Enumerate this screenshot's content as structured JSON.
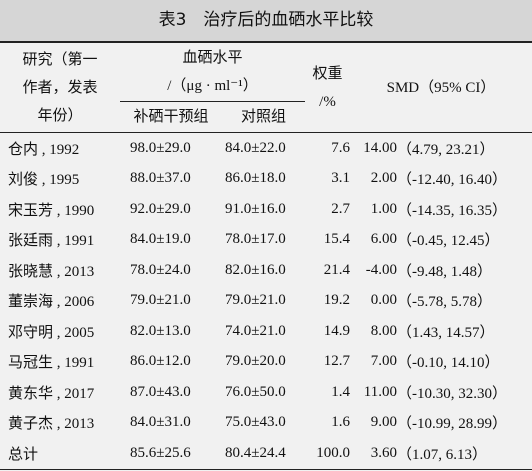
{
  "title": "表3　治疗后的血硒水平比较",
  "header": {
    "study": [
      "研究（第一",
      "作者，发表",
      "年份）"
    ],
    "level": [
      "血硒水平",
      "/（μg · ml⁻¹）"
    ],
    "intervention": "补硒干预组",
    "control": "对照组",
    "weight": [
      "权重",
      "/%"
    ],
    "smd": "SMD（95% CI）"
  },
  "table": {
    "rows": [
      [
        "仓内 , 1992",
        "98.0±29.0",
        "84.0±22.0",
        "7.6",
        "14.00",
        "（4.79, 23.21）"
      ],
      [
        "刘俊 , 1995",
        "88.0±37.0",
        "86.0±18.0",
        "3.1",
        "2.00",
        "（-12.40, 16.40）"
      ],
      [
        "宋玉芳 , 1990",
        "92.0±29.0",
        "91.0±16.0",
        "2.7",
        "1.00",
        "（-14.35, 16.35）"
      ],
      [
        "张廷雨 , 1991",
        "84.0±19.0",
        "78.0±17.0",
        "15.4",
        "6.00",
        "（-0.45, 12.45）"
      ],
      [
        "张晓慧 , 2013",
        "78.0±24.0",
        "82.0±16.0",
        "21.4",
        "-4.00",
        "（-9.48, 1.48）"
      ],
      [
        "董崇海 , 2006",
        "79.0±21.0",
        "79.0±21.0",
        "19.2",
        "0.00",
        "（-5.78, 5.78）"
      ],
      [
        "邓守明 , 2005",
        "82.0±13.0",
        "74.0±21.0",
        "14.9",
        "8.00",
        "（1.43, 14.57）"
      ],
      [
        "马冠生 , 1991",
        "86.0±12.0",
        "79.0±20.0",
        "12.7",
        "7.00",
        "（-0.10, 14.10）"
      ],
      [
        "黄东华 , 2017",
        "87.0±43.0",
        "76.0±50.0",
        "1.4",
        "11.00",
        "（-10.30, 32.30）"
      ],
      [
        "黄子杰 , 2013",
        "84.0±31.0",
        "75.0±43.0",
        "1.6",
        "9.00",
        "（-10.99, 28.99）"
      ],
      [
        "总计",
        "85.6±25.6",
        "80.4±24.4",
        "100.0",
        "3.60",
        "（1.07, 6.13）"
      ]
    ]
  }
}
